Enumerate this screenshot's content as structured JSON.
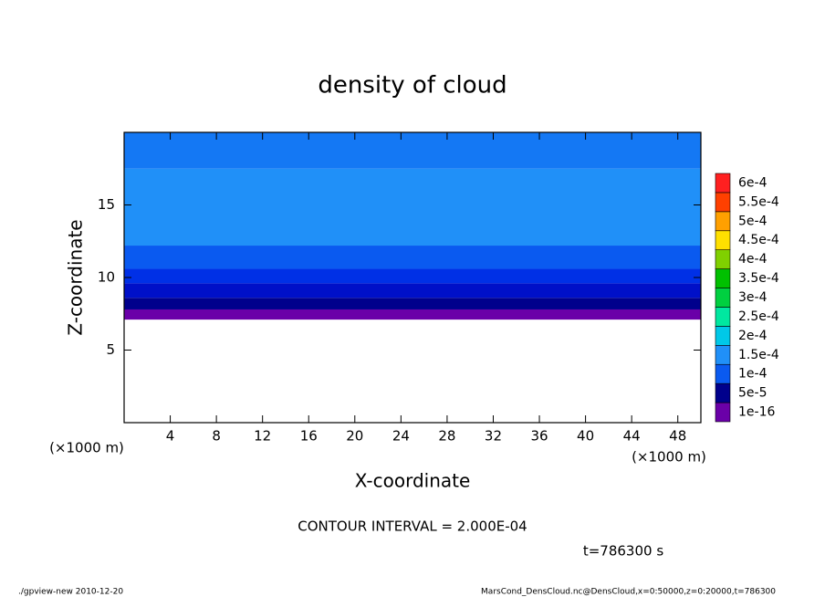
{
  "chart_data": {
    "type": "contour",
    "title": "density of cloud",
    "x_label": "X-coordinate",
    "y_label": "Z-coordinate",
    "x_unit": "(×1000 m)",
    "y_unit": "(×1000 m)",
    "xlim": [
      0,
      50
    ],
    "ylim": [
      0,
      20
    ],
    "xticks": [
      4,
      8,
      12,
      16,
      20,
      24,
      28,
      32,
      36,
      40,
      44,
      48
    ],
    "yticks": [
      5,
      10,
      15
    ],
    "bands": [
      {
        "zlim": [
          7.1,
          7.8
        ],
        "color": "#6a00a8"
      },
      {
        "zlim": [
          7.8,
          8.6
        ],
        "color": "#00008c"
      },
      {
        "zlim": [
          8.6,
          9.6
        ],
        "color": "#0010c8"
      },
      {
        "zlim": [
          9.6,
          10.6
        ],
        "color": "#0030e6"
      },
      {
        "zlim": [
          10.6,
          12.2
        ],
        "color": "#0a5af0"
      },
      {
        "zlim": [
          12.2,
          17.5
        ],
        "color": "#2090f8"
      },
      {
        "zlim": [
          17.5,
          20
        ],
        "color": "#1478f4"
      }
    ],
    "levels": [
      {
        "value": 1e-16,
        "label": "1e-16"
      },
      {
        "value": 5e-05,
        "label": "5e-5"
      },
      {
        "value": 0.0001,
        "label": "1e-4"
      },
      {
        "value": 0.00015,
        "label": "1.5e-4"
      },
      {
        "value": 0.0002,
        "label": "2e-4"
      },
      {
        "value": 0.00025,
        "label": "2.5e-4"
      },
      {
        "value": 0.0003,
        "label": "3e-4"
      },
      {
        "value": 0.00035,
        "label": "3.5e-4"
      },
      {
        "value": 0.0004,
        "label": "4e-4"
      },
      {
        "value": 0.00045,
        "label": "4.5e-4"
      },
      {
        "value": 0.0005,
        "label": "5e-4"
      },
      {
        "value": 0.00055,
        "label": "5.5e-4"
      },
      {
        "value": 0.0006,
        "label": "6e-4"
      }
    ],
    "level_colors": [
      "#6a00a8",
      "#00008c",
      "#0a5af0",
      "#2090f8",
      "#00c8e8",
      "#00e8a0",
      "#00d040",
      "#00c000",
      "#80d000",
      "#ffe000",
      "#ffa000",
      "#ff4000",
      "#ff2020",
      "#ff9090"
    ],
    "contour_interval_text": "CONTOUR INTERVAL = 2.000E-04",
    "time_text": "t=786300 s",
    "footer_left": "./gpview-new   2010-12-20",
    "footer_right": "MarsCond_DensCloud.nc@DensCloud,x=0:50000,z=0:20000,t=786300"
  }
}
